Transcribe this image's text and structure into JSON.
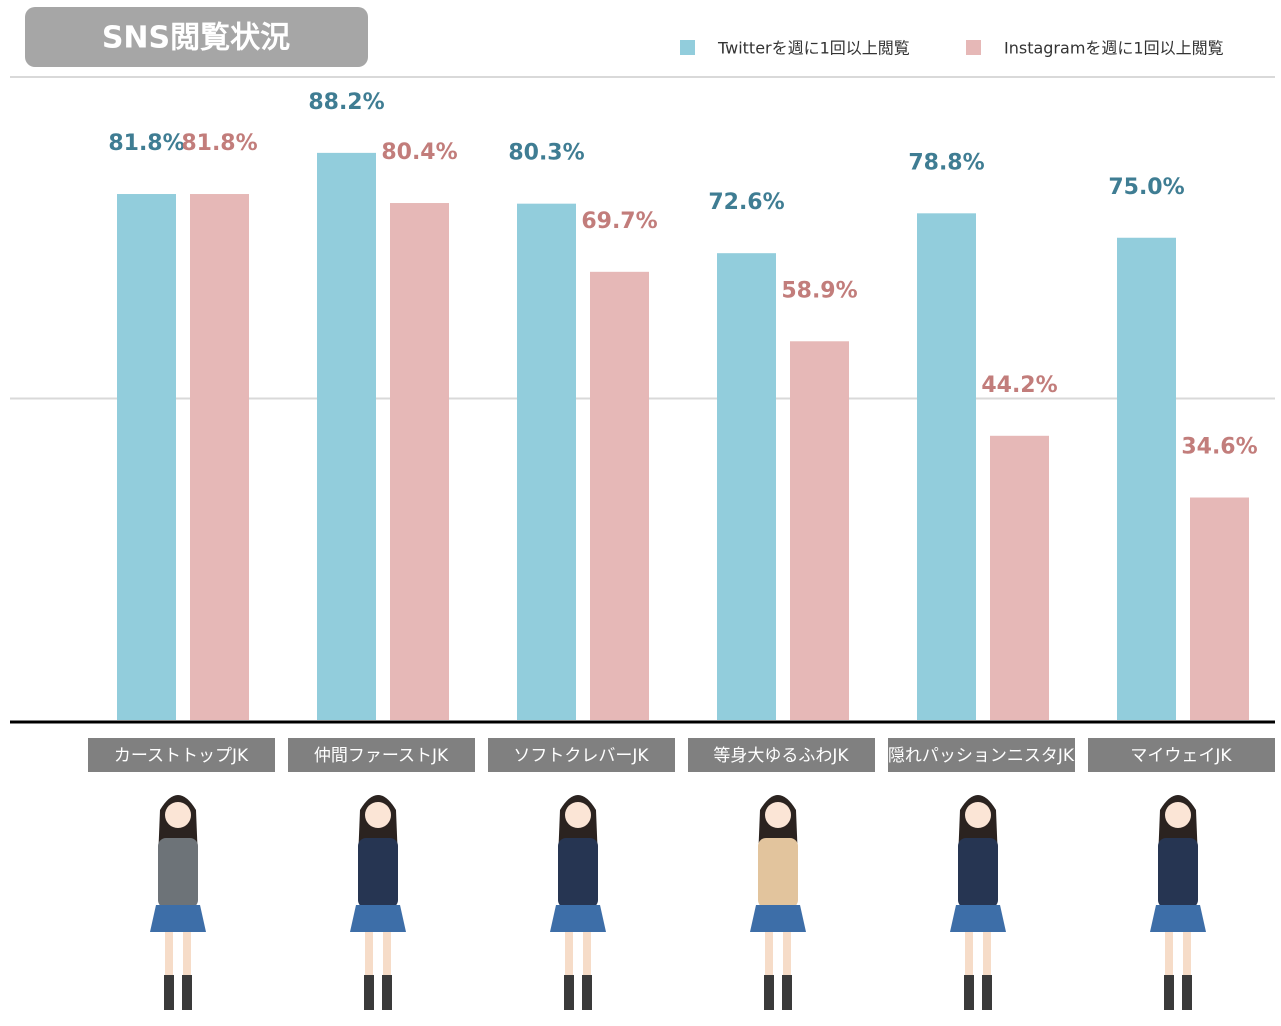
{
  "chart_data": {
    "type": "bar",
    "title": "SNS閲覧状況",
    "categories": [
      "カーストトップJK",
      "仲間ファーストJK",
      "ソフトクレバーJK",
      "等身大ゆるふわJK",
      "隠れパッションニスタJK",
      "マイウェイJK"
    ],
    "series": [
      {
        "name": "Twitterを週に1回以上閲覧",
        "color": "#92cddc",
        "label_color": "#3f7d93",
        "values": [
          81.8,
          88.2,
          80.3,
          72.6,
          78.8,
          75.0
        ],
        "value_labels": [
          "81.8%",
          "88.2%",
          "80.3%",
          "72.6%",
          "78.8%",
          "75.0%"
        ]
      },
      {
        "name": "Instagramを週に1回以上閲覧",
        "color": "#e6b8b7",
        "label_color": "#c27d7b",
        "values": [
          81.8,
          80.4,
          69.7,
          58.9,
          44.2,
          34.6
        ],
        "value_labels": [
          "81.8%",
          "80.4%",
          "69.7%",
          "58.9%",
          "44.2%",
          "34.6%"
        ]
      }
    ],
    "ylim": [
      0,
      100
    ],
    "gridlines": [
      50,
      100
    ],
    "legend": "top-right"
  }
}
